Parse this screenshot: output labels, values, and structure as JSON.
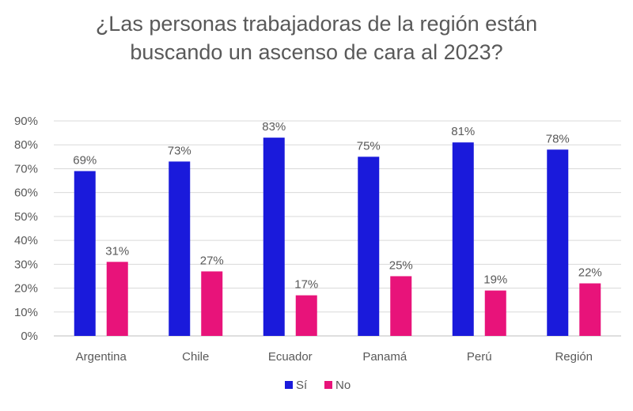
{
  "chart_data": {
    "type": "bar",
    "title_line1": "¿Las personas trabajadoras de la región están",
    "title_line2": "buscando un ascenso de cara al 2023?",
    "categories": [
      "Argentina",
      "Chile",
      "Ecuador",
      "Panamá",
      "Perú",
      "Región"
    ],
    "series": [
      {
        "name": "Sí",
        "color": "#1a1adb",
        "values": [
          69,
          73,
          83,
          75,
          81,
          78
        ],
        "labels": [
          "69%",
          "73%",
          "83%",
          "75%",
          "81%",
          "78%"
        ]
      },
      {
        "name": "No",
        "color": "#e8137a",
        "values": [
          31,
          27,
          17,
          25,
          19,
          22
        ],
        "labels": [
          "31%",
          "27%",
          "17%",
          "25%",
          "19%",
          "22%"
        ]
      }
    ],
    "ylim": [
      0,
      90
    ],
    "yticks": [
      {
        "value": 0,
        "label": "0%"
      },
      {
        "value": 10,
        "label": "10%"
      },
      {
        "value": 20,
        "label": "20%"
      },
      {
        "value": 30,
        "label": "30%"
      },
      {
        "value": 40,
        "label": "40%"
      },
      {
        "value": 50,
        "label": "50%"
      },
      {
        "value": 60,
        "label": "60%"
      },
      {
        "value": 70,
        "label": "70%"
      },
      {
        "value": 80,
        "label": "80%"
      },
      {
        "value": 90,
        "label": "90%"
      }
    ],
    "grid": true,
    "legend_position": "bottom",
    "xlabel": "",
    "ylabel": ""
  }
}
